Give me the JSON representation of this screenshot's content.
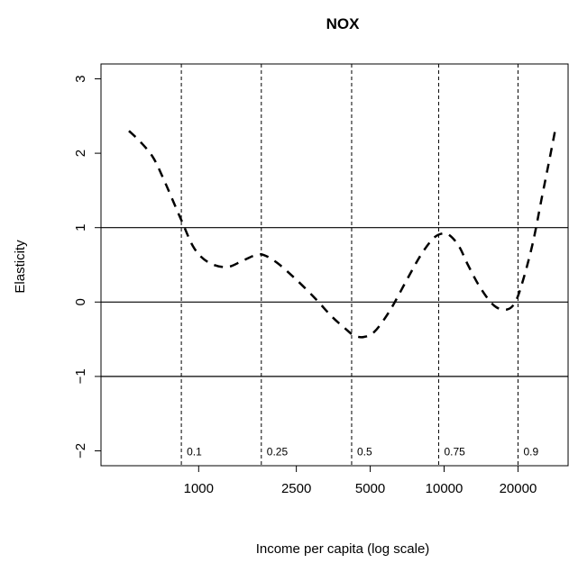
{
  "chart_data": {
    "type": "line",
    "title": "NOX",
    "xlabel": "Income per capita (log scale)",
    "ylabel": "Elasticity",
    "x_scale": "log",
    "xlim": [
      400,
      32000
    ],
    "ylim": [
      -2.2,
      3.2
    ],
    "x_ticks": [
      1000,
      2500,
      5000,
      10000,
      20000
    ],
    "x_tick_labels": [
      "1000",
      "2500",
      "5000",
      "10000",
      "20000"
    ],
    "y_ticks": [
      -2,
      -1,
      0,
      1,
      2,
      3
    ],
    "y_tick_labels": [
      "−2",
      "−1",
      "0",
      "1",
      "2",
      "3"
    ],
    "reference_lines_y": [
      -1,
      0,
      1
    ],
    "quantile_lines": [
      {
        "x": 850,
        "label": "0.1"
      },
      {
        "x": 1800,
        "label": "0.25"
      },
      {
        "x": 4200,
        "label": "0.5"
      },
      {
        "x": 9500,
        "label": "0.75"
      },
      {
        "x": 20000,
        "label": "0.9"
      }
    ],
    "series": [
      {
        "line_style": "dashed",
        "x": [
          520,
          580,
          650,
          720,
          850,
          960,
          1100,
          1300,
          1500,
          1700,
          1850,
          2100,
          2500,
          3000,
          3500,
          4000,
          4300,
          4700,
          5200,
          6000,
          7000,
          8000,
          9000,
          9800,
          10500,
          11500,
          12500,
          14000,
          16000,
          18000,
          19500,
          21000,
          23000,
          25000,
          27000,
          28500
        ],
        "y": [
          2.3,
          2.15,
          1.95,
          1.65,
          1.1,
          0.72,
          0.53,
          0.47,
          0.55,
          0.63,
          0.63,
          0.52,
          0.3,
          0.04,
          -0.2,
          -0.37,
          -0.45,
          -0.47,
          -0.4,
          -0.12,
          0.28,
          0.62,
          0.85,
          0.92,
          0.9,
          0.75,
          0.5,
          0.2,
          -0.05,
          -0.1,
          0.0,
          0.3,
          0.8,
          1.4,
          1.95,
          2.35
        ]
      }
    ]
  }
}
